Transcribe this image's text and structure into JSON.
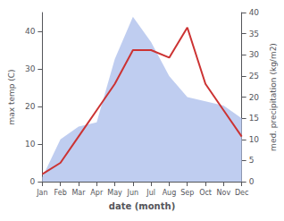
{
  "chart_data": {
    "type": "line",
    "categories": [
      "Jan",
      "Feb",
      "Mar",
      "Apr",
      "May",
      "Jun",
      "Jul",
      "Aug",
      "Sep",
      "Oct",
      "Nov",
      "Dec"
    ],
    "series": [
      {
        "type": "area",
        "axis": "y2",
        "color": "#b8c8ee",
        "values": [
          1,
          10,
          13,
          14,
          29,
          39,
          33,
          25,
          20,
          19,
          18,
          15
        ]
      },
      {
        "type": "line",
        "color": "#cc3333",
        "values": [
          2,
          5,
          12,
          19,
          26,
          35,
          35,
          33,
          41,
          26,
          19,
          12
        ]
      }
    ],
    "xlabel": "date (month)",
    "ylabel": "max temp (C)",
    "y2label": "med. precipitation (kg/m2)",
    "ylim": [
      0,
      45
    ],
    "yticks": [
      0,
      10,
      20,
      30,
      40
    ],
    "y2lim": [
      0,
      40
    ],
    "y2ticks": [
      0,
      5,
      10,
      15,
      20,
      25,
      30,
      35,
      40
    ],
    "grid": false
  }
}
